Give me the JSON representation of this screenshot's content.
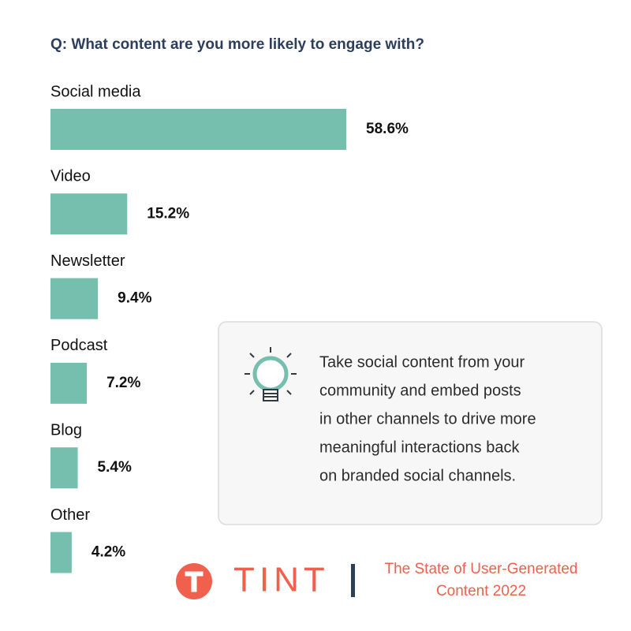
{
  "chart_data": {
    "type": "bar",
    "orientation": "horizontal",
    "title": "Q: What content are you more likely to engage with?",
    "categories": [
      "Social media",
      "Video",
      "Newsletter",
      "Podcast",
      "Blog",
      "Other"
    ],
    "values": [
      58.6,
      15.2,
      9.4,
      7.2,
      5.4,
      4.2
    ],
    "value_labels": [
      "58.6%",
      "15.2%",
      "9.4%",
      "7.2%",
      "5.4%",
      "4.2%"
    ],
    "color": "#76bfae",
    "xlim": [
      0,
      100
    ]
  },
  "callout": {
    "lines": [
      "Take social content from your",
      "community and embed posts",
      "in other channels to drive more",
      "meaningful interactions back",
      "on branded social channels."
    ]
  },
  "footer": {
    "logo": "TINT",
    "lines": [
      "The State of User-Generated",
      "Content 2022"
    ]
  }
}
